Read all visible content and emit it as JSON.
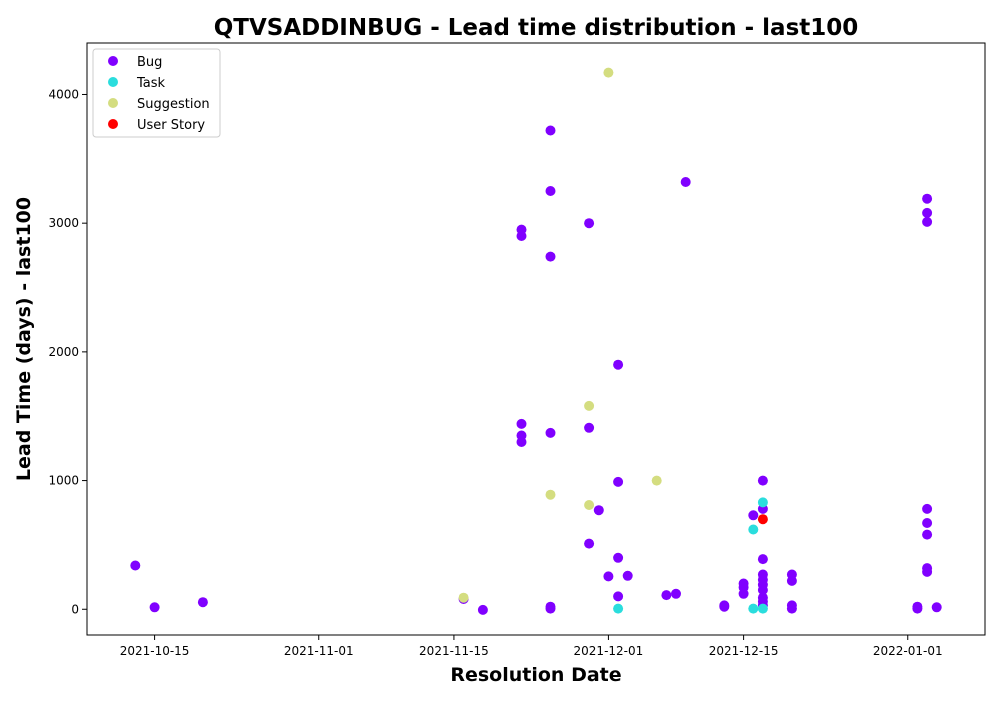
{
  "chart_data": {
    "type": "scatter",
    "title": "QTVSADDINBUG - Lead time distribution - last100",
    "xlabel": "Resolution Date",
    "ylabel": "Lead Time (days) - last100",
    "x_axis_type": "date",
    "xlim": [
      "2021-10-08",
      "2022-01-09"
    ],
    "ylim": [
      -200,
      4400
    ],
    "x_ticks": [
      "2021-10-15",
      "2021-11-01",
      "2021-11-15",
      "2021-12-01",
      "2021-12-15",
      "2022-01-01"
    ],
    "y_ticks": [
      0,
      1000,
      2000,
      3000,
      4000
    ],
    "grid": false,
    "legend_position": "top-left",
    "series": [
      {
        "name": "Bug",
        "color": "#8000ff",
        "points": [
          [
            "2021-10-13",
            340
          ],
          [
            "2021-10-15",
            15
          ],
          [
            "2021-10-20",
            55
          ],
          [
            "2021-11-16",
            80
          ],
          [
            "2021-11-18",
            -5
          ],
          [
            "2021-11-22",
            2950
          ],
          [
            "2021-11-22",
            2900
          ],
          [
            "2021-11-22",
            1440
          ],
          [
            "2021-11-22",
            1350
          ],
          [
            "2021-11-22",
            1300
          ],
          [
            "2021-11-25",
            3720
          ],
          [
            "2021-11-25",
            3250
          ],
          [
            "2021-11-25",
            2740
          ],
          [
            "2021-11-25",
            1370
          ],
          [
            "2021-11-25",
            20
          ],
          [
            "2021-11-25",
            5
          ],
          [
            "2021-11-29",
            3000
          ],
          [
            "2021-11-29",
            1410
          ],
          [
            "2021-11-29",
            510
          ],
          [
            "2021-11-30",
            770
          ],
          [
            "2021-12-01",
            255
          ],
          [
            "2021-12-02",
            1900
          ],
          [
            "2021-12-02",
            990
          ],
          [
            "2021-12-02",
            400
          ],
          [
            "2021-12-02",
            100
          ],
          [
            "2021-12-03",
            260
          ],
          [
            "2021-12-07",
            110
          ],
          [
            "2021-12-08",
            120
          ],
          [
            "2021-12-09",
            3320
          ],
          [
            "2021-12-13",
            30
          ],
          [
            "2021-12-13",
            20
          ],
          [
            "2021-12-15",
            200
          ],
          [
            "2021-12-15",
            170
          ],
          [
            "2021-12-15",
            120
          ],
          [
            "2021-12-16",
            730
          ],
          [
            "2021-12-17",
            1000
          ],
          [
            "2021-12-17",
            780
          ],
          [
            "2021-12-17",
            390
          ],
          [
            "2021-12-17",
            270
          ],
          [
            "2021-12-17",
            230
          ],
          [
            "2021-12-17",
            190
          ],
          [
            "2021-12-17",
            150
          ],
          [
            "2021-12-17",
            90
          ],
          [
            "2021-12-17",
            60
          ],
          [
            "2021-12-17",
            30
          ],
          [
            "2021-12-20",
            270
          ],
          [
            "2021-12-20",
            220
          ],
          [
            "2021-12-20",
            30
          ],
          [
            "2021-12-20",
            5
          ],
          [
            "2022-01-02",
            20
          ],
          [
            "2022-01-02",
            5
          ],
          [
            "2022-01-03",
            3190
          ],
          [
            "2022-01-03",
            3080
          ],
          [
            "2022-01-03",
            3010
          ],
          [
            "2022-01-03",
            780
          ],
          [
            "2022-01-03",
            670
          ],
          [
            "2022-01-03",
            580
          ],
          [
            "2022-01-03",
            320
          ],
          [
            "2022-01-03",
            290
          ],
          [
            "2022-01-04",
            15
          ]
        ]
      },
      {
        "name": "Task",
        "color": "#2adddd",
        "points": [
          [
            "2021-12-02",
            5
          ],
          [
            "2021-12-16",
            620
          ],
          [
            "2021-12-16",
            5
          ],
          [
            "2021-12-17",
            830
          ],
          [
            "2021-12-17",
            5
          ]
        ]
      },
      {
        "name": "Suggestion",
        "color": "#d4dd80",
        "points": [
          [
            "2021-11-16",
            90
          ],
          [
            "2021-11-25",
            890
          ],
          [
            "2021-11-29",
            1580
          ],
          [
            "2021-11-29",
            810
          ],
          [
            "2021-12-01",
            4170
          ],
          [
            "2021-12-06",
            1000
          ]
        ]
      },
      {
        "name": "User Story",
        "color": "#ff0000",
        "points": [
          [
            "2021-12-17",
            700
          ]
        ]
      }
    ]
  }
}
